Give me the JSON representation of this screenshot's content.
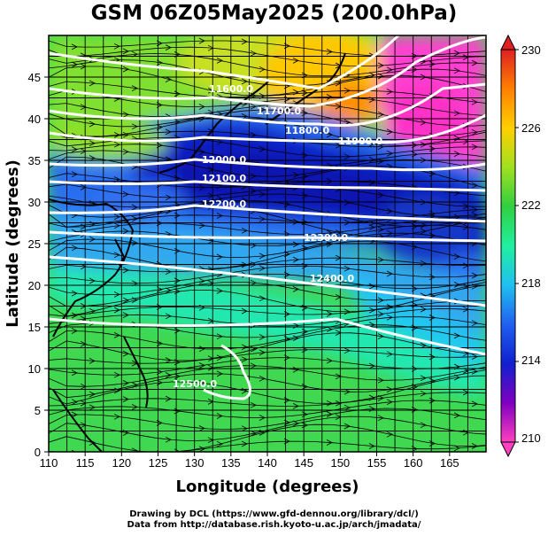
{
  "title": "GSM 06Z05May2025 (200.0hPa)",
  "axes": {
    "x_label": "Longitude (degrees)",
    "y_label": "Latitude  (degrees)",
    "x_range": [
      110,
      170
    ],
    "y_range": [
      0,
      50
    ],
    "x_ticks": [
      "110",
      "115",
      "120",
      "125",
      "130",
      "135",
      "140",
      "145",
      "150",
      "155",
      "160",
      "165"
    ],
    "y_ticks": [
      "0",
      "5",
      "10",
      "15",
      "20",
      "25",
      "30",
      "35",
      "40",
      "45"
    ]
  },
  "colorbar": {
    "range": [
      210,
      230
    ],
    "labels": [
      "230",
      "226",
      "222",
      "218",
      "214",
      "210"
    ],
    "palette": [
      "#ff40c0",
      "#8000c0",
      "#1020d0",
      "#2060f0",
      "#20c0f0",
      "#20f0a0",
      "#30d040",
      "#a0e020",
      "#ffd000",
      "#ff8000",
      "#e02020"
    ]
  },
  "contours": [
    {
      "label": "11600.0"
    },
    {
      "label": "11700.0"
    },
    {
      "label": "11800.0"
    },
    {
      "label": "11900.0"
    },
    {
      "label": "12000.0"
    },
    {
      "label": "12100.0"
    },
    {
      "label": "12200.0"
    },
    {
      "label": "12300.0"
    },
    {
      "label": "12400.0"
    },
    {
      "label": "12500.0"
    }
  ],
  "credits": {
    "line1": "Drawing by DCL (https://www.gfd-dennou.org/library/dcl/)",
    "line2": "Data from http://database.rish.kyoto-u.ac.jp/arch/jmadata/"
  }
}
